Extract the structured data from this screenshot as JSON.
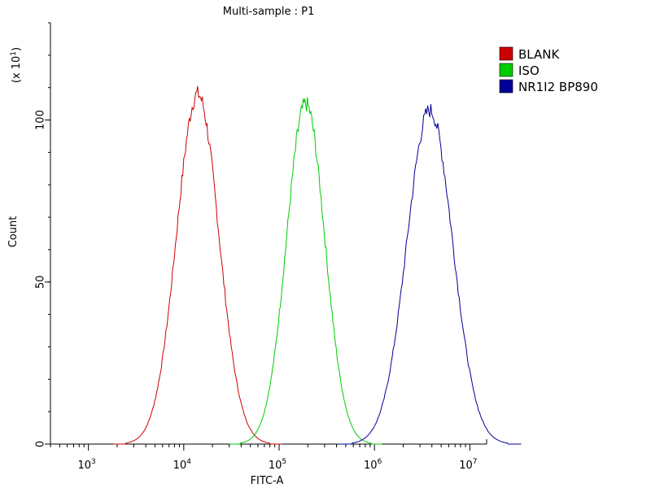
{
  "chart_data": {
    "type": "line",
    "title": "Multi-sample : P1",
    "xlabel": "FITC-A",
    "ylabel": "Count",
    "y_scale_note": "(x 10",
    "y_scale_exp": "1",
    "x_scale": "log",
    "xlim": [
      400,
      15000000
    ],
    "ylim": [
      0,
      130
    ],
    "x_ticks": [
      {
        "value": 1000,
        "base": "10",
        "exp": "3"
      },
      {
        "value": 10000,
        "base": "10",
        "exp": "4"
      },
      {
        "value": 100000,
        "base": "10",
        "exp": "5"
      },
      {
        "value": 1000000,
        "base": "10",
        "exp": "6"
      },
      {
        "value": 10000000,
        "base": "10",
        "exp": "7"
      }
    ],
    "y_ticks": [
      0,
      50,
      100
    ],
    "legend_position": "top-right",
    "series": [
      {
        "name": "BLANK",
        "color": "#cc0000",
        "peak_x": 14000,
        "peak_y": 108,
        "spread": 0.22
      },
      {
        "name": "ISO",
        "color": "#00cc00",
        "peak_x": 190000,
        "peak_y": 105,
        "spread": 0.2
      },
      {
        "name": "NR1I2 BP890",
        "color": "#000099",
        "peak_x": 3800000,
        "peak_y": 103,
        "spread": 0.24
      }
    ]
  }
}
